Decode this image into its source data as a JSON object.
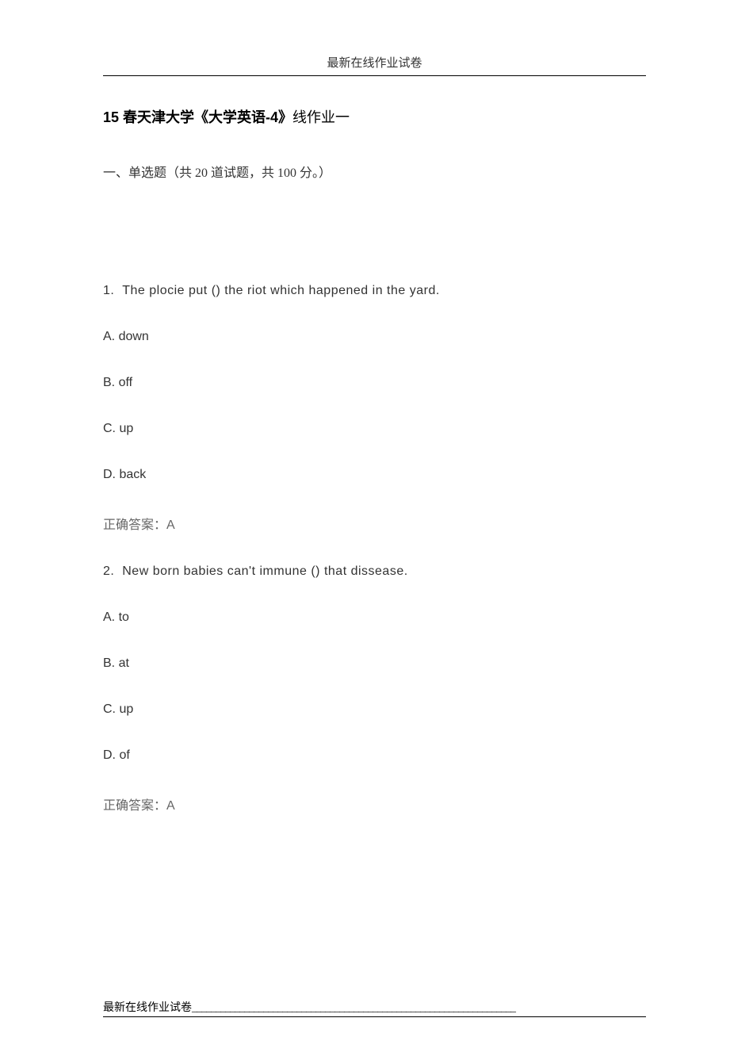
{
  "header": {
    "title": "最新在线作业试卷"
  },
  "main_title": {
    "bold": "15",
    "rest_bold": " 春天津大学《大学英语-4》",
    "rest": "线作业一"
  },
  "section": {
    "label": "一、单选题（共 20 道试题，共 100 分。）"
  },
  "questions": [
    {
      "number": "1.",
      "text": "The plocie put () the riot which happened in the yard.",
      "options": [
        {
          "label": "A. down"
        },
        {
          "label": "B. off"
        },
        {
          "label": "C. up"
        },
        {
          "label": "D. back"
        }
      ],
      "answer_label": "正确答案：",
      "answer_value": "A"
    },
    {
      "number": "2.",
      "text": "New born babies can't immune () that dissease.",
      "options": [
        {
          "label": "A. to"
        },
        {
          "label": "B. at"
        },
        {
          "label": "C. up"
        },
        {
          "label": "D. of"
        }
      ],
      "answer_label": "正确答案：",
      "answer_value": "A"
    }
  ],
  "footer": {
    "label": "最新在线作业试卷",
    "line": "____________________________________________________________________"
  },
  "colors": {
    "background": "#ffffff",
    "text_primary": "#333333",
    "text_black": "#000000",
    "text_muted": "#666666",
    "border": "#000000"
  },
  "typography": {
    "header_fontsize": 15,
    "title_fontsize": 18,
    "body_fontsize": 16,
    "footer_fontsize": 14
  }
}
